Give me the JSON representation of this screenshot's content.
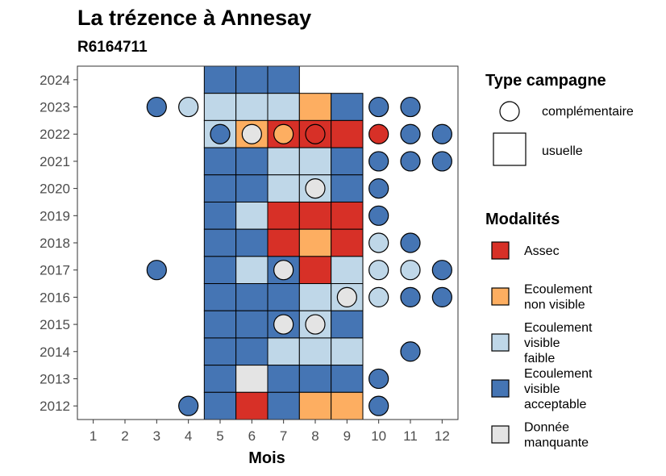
{
  "chart_data": {
    "type": "heatmap",
    "title": "La trézence à Annesay",
    "subtitle": "R6164711",
    "xlabel": "Mois",
    "ylabel": "",
    "x_ticks": [
      1,
      2,
      3,
      4,
      5,
      6,
      7,
      8,
      9,
      10,
      11,
      12
    ],
    "y_ticks": [
      2012,
      2013,
      2014,
      2015,
      2016,
      2017,
      2018,
      2019,
      2020,
      2021,
      2022,
      2023,
      2024
    ],
    "xlim": [
      0.5,
      12.5
    ],
    "ylim": [
      2011.5,
      2024.5
    ],
    "colors": {
      "assec": "#d73027",
      "ecoulement_non_visible": "#fdae61",
      "ecoulement_visible_faible": "#bfd7e8",
      "ecoulement_visible_acceptable": "#4575b4",
      "donnee_manquante": "#e4e4e4"
    },
    "legend_type": {
      "title": "Type campagne",
      "items": [
        {
          "shape": "circle",
          "label": "complémentaire"
        },
        {
          "shape": "square",
          "label": "usuelle"
        }
      ]
    },
    "legend_modalites": {
      "title": "Modalités",
      "items": [
        {
          "key": "assec",
          "lines": [
            "Assec"
          ]
        },
        {
          "key": "ecoulement_non_visible",
          "lines": [
            "Ecoulement",
            "non visible"
          ]
        },
        {
          "key": "ecoulement_visible_faible",
          "lines": [
            "Ecoulement",
            "visible",
            "faible"
          ]
        },
        {
          "key": "ecoulement_visible_acceptable",
          "lines": [
            "Ecoulement",
            "visible",
            "acceptable"
          ]
        },
        {
          "key": "donnee_manquante",
          "lines": [
            "Donnée",
            "manquante"
          ]
        }
      ]
    },
    "usuelle": [
      {
        "year": 2024,
        "months": {
          "5": "ecoulement_visible_acceptable",
          "6": "ecoulement_visible_acceptable",
          "7": "ecoulement_visible_acceptable"
        }
      },
      {
        "year": 2023,
        "months": {
          "5": "ecoulement_visible_faible",
          "6": "ecoulement_visible_faible",
          "7": "ecoulement_visible_faible",
          "8": "ecoulement_non_visible",
          "9": "ecoulement_visible_acceptable"
        }
      },
      {
        "year": 2022,
        "months": {
          "5": "ecoulement_visible_faible",
          "6": "ecoulement_non_visible",
          "7": "assec",
          "8": "assec",
          "9": "assec"
        }
      },
      {
        "year": 2021,
        "months": {
          "5": "ecoulement_visible_acceptable",
          "6": "ecoulement_visible_acceptable",
          "7": "ecoulement_visible_faible",
          "8": "ecoulement_visible_faible",
          "9": "ecoulement_visible_acceptable"
        }
      },
      {
        "year": 2020,
        "months": {
          "5": "ecoulement_visible_acceptable",
          "6": "ecoulement_visible_acceptable",
          "7": "ecoulement_visible_faible",
          "8": "ecoulement_visible_faible",
          "9": "ecoulement_visible_acceptable"
        }
      },
      {
        "year": 2019,
        "months": {
          "5": "ecoulement_visible_acceptable",
          "6": "ecoulement_visible_faible",
          "7": "assec",
          "8": "assec",
          "9": "assec"
        }
      },
      {
        "year": 2018,
        "months": {
          "5": "ecoulement_visible_acceptable",
          "6": "ecoulement_visible_acceptable",
          "7": "assec",
          "8": "ecoulement_non_visible",
          "9": "assec"
        }
      },
      {
        "year": 2017,
        "months": {
          "5": "ecoulement_visible_acceptable",
          "6": "ecoulement_visible_faible",
          "7": "ecoulement_visible_acceptable",
          "8": "assec",
          "9": "ecoulement_visible_faible"
        }
      },
      {
        "year": 2016,
        "months": {
          "5": "ecoulement_visible_acceptable",
          "6": "ecoulement_visible_acceptable",
          "7": "ecoulement_visible_acceptable",
          "8": "ecoulement_visible_faible",
          "9": "ecoulement_visible_faible"
        }
      },
      {
        "year": 2015,
        "months": {
          "5": "ecoulement_visible_acceptable",
          "6": "ecoulement_visible_acceptable",
          "7": "ecoulement_visible_acceptable",
          "8": "ecoulement_visible_faible",
          "9": "ecoulement_visible_acceptable"
        }
      },
      {
        "year": 2014,
        "months": {
          "5": "ecoulement_visible_acceptable",
          "6": "ecoulement_visible_acceptable",
          "7": "ecoulement_visible_faible",
          "8": "ecoulement_visible_faible",
          "9": "ecoulement_visible_faible"
        }
      },
      {
        "year": 2013,
        "months": {
          "5": "ecoulement_visible_acceptable",
          "6": "donnee_manquante",
          "7": "ecoulement_visible_acceptable",
          "8": "ecoulement_visible_acceptable",
          "9": "ecoulement_visible_acceptable"
        }
      },
      {
        "year": 2012,
        "months": {
          "5": "ecoulement_visible_acceptable",
          "6": "assec",
          "7": "ecoulement_visible_acceptable",
          "8": "ecoulement_non_visible",
          "9": "ecoulement_non_visible"
        }
      }
    ],
    "complementaire": [
      {
        "year": 2023,
        "months": {
          "3": "ecoulement_visible_acceptable",
          "4": "ecoulement_visible_faible",
          "10": "ecoulement_visible_acceptable",
          "11": "ecoulement_visible_acceptable"
        }
      },
      {
        "year": 2022,
        "months": {
          "5": "ecoulement_visible_acceptable",
          "6": "donnee_manquante",
          "7": "ecoulement_non_visible",
          "8": "assec",
          "10": "assec",
          "11": "ecoulement_visible_acceptable",
          "12": "ecoulement_visible_acceptable"
        }
      },
      {
        "year": 2021,
        "months": {
          "10": "ecoulement_visible_acceptable",
          "11": "ecoulement_visible_acceptable",
          "12": "ecoulement_visible_acceptable"
        }
      },
      {
        "year": 2020,
        "months": {
          "8": "donnee_manquante",
          "10": "ecoulement_visible_acceptable"
        }
      },
      {
        "year": 2019,
        "months": {
          "10": "ecoulement_visible_acceptable"
        }
      },
      {
        "year": 2018,
        "months": {
          "10": "ecoulement_visible_faible",
          "11": "ecoulement_visible_acceptable"
        }
      },
      {
        "year": 2017,
        "months": {
          "3": "ecoulement_visible_acceptable",
          "7": "donnee_manquante",
          "10": "ecoulement_visible_faible",
          "11": "ecoulement_visible_faible",
          "12": "ecoulement_visible_acceptable"
        }
      },
      {
        "year": 2016,
        "months": {
          "9": "donnee_manquante",
          "10": "ecoulement_visible_faible",
          "11": "ecoulement_visible_acceptable",
          "12": "ecoulement_visible_acceptable"
        }
      },
      {
        "year": 2015,
        "months": {
          "7": "donnee_manquante",
          "8": "donnee_manquante"
        }
      },
      {
        "year": 2014,
        "months": {
          "11": "ecoulement_visible_acceptable"
        }
      },
      {
        "year": 2013,
        "months": {
          "10": "ecoulement_visible_acceptable"
        }
      },
      {
        "year": 2012,
        "months": {
          "4": "ecoulement_visible_acceptable",
          "10": "ecoulement_visible_acceptable"
        }
      }
    ]
  }
}
